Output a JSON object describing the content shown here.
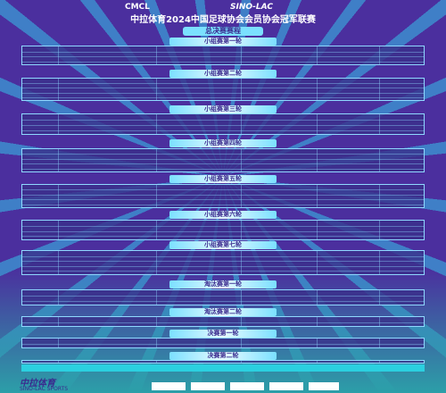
{
  "header": {
    "logo_left": "CMCL",
    "logo_right": "SINO-LAC",
    "title": "中拉体育2024中国足球协会会员协会冠军联赛",
    "stage_title": "总决赛赛程"
  },
  "sections": [
    {
      "title": "小组赛第一轮"
    },
    {
      "title": "小组赛第二轮"
    },
    {
      "title": "小组赛第三轮"
    },
    {
      "title": "小组赛第四轮"
    },
    {
      "title": "小组赛第五轮"
    },
    {
      "title": "小组赛第六轮"
    },
    {
      "title": "小组赛第七轮"
    },
    {
      "title": "淘汰赛第一轮"
    },
    {
      "title": "淘汰赛第二轮"
    },
    {
      "title": "决赛第一轮"
    },
    {
      "title": "决赛第二轮"
    }
  ],
  "footer": {
    "brand": "中拉体育",
    "brand_sub": "SINO-LAC SPORTS"
  }
}
